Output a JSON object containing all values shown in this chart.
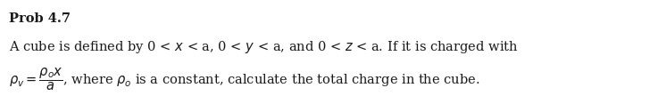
{
  "title": "Prob 4.7",
  "line1": "A cube is defined by 0 < $x$ < a, 0 < $y$ < a, and 0 < $z$ < a. If it is charged with",
  "line2": "$\\rho_v = \\dfrac{\\rho_o x}{a}$, where $\\rho_o$ is a constant, calculate the total charge in the cube.",
  "background_color": "#ffffff",
  "text_color": "#1a1a1a",
  "title_fontsize": 10.5,
  "body_fontsize": 10.5
}
